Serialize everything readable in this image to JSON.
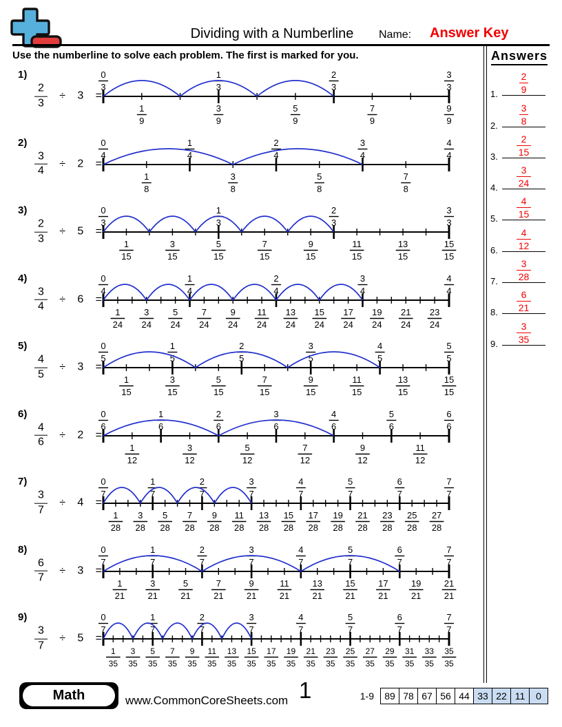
{
  "header": {
    "title": "Dividing with a Numberline",
    "name_label": "Name:",
    "name_value": "Answer Key",
    "instructions": "Use the numberline to solve each problem. The first is marked for you."
  },
  "answers_panel": {
    "title": "Answers",
    "items": [
      {
        "index": "1.",
        "numerator": "2",
        "denominator": "9"
      },
      {
        "index": "2.",
        "numerator": "3",
        "denominator": "8"
      },
      {
        "index": "3.",
        "numerator": "2",
        "denominator": "15"
      },
      {
        "index": "4.",
        "numerator": "3",
        "denominator": "24"
      },
      {
        "index": "5.",
        "numerator": "4",
        "denominator": "15"
      },
      {
        "index": "6.",
        "numerator": "4",
        "denominator": "12"
      },
      {
        "index": "7.",
        "numerator": "3",
        "denominator": "28"
      },
      {
        "index": "8.",
        "numerator": "6",
        "denominator": "21"
      },
      {
        "index": "9.",
        "numerator": "3",
        "denominator": "35"
      }
    ]
  },
  "problems": [
    {
      "number": "1)",
      "expression": {
        "numerator": "2",
        "denominator": "3",
        "op": "÷",
        "divisor": "3",
        "eq": "="
      },
      "numberline": {
        "subdivisions": 9,
        "top_labels": [
          "0/3",
          "1/3",
          "2/3",
          "3/3"
        ],
        "bottom_labels": [
          "1/9",
          "3/9",
          "5/9",
          "7/9",
          "9/9"
        ],
        "arc_count": 3,
        "arc_span": 2
      }
    },
    {
      "number": "2)",
      "expression": {
        "numerator": "3",
        "denominator": "4",
        "op": "÷",
        "divisor": "2",
        "eq": "="
      },
      "numberline": {
        "subdivisions": 8,
        "top_labels": [
          "0/4",
          "1/4",
          "2/4",
          "3/4",
          "4/4"
        ],
        "bottom_labels": [
          "1/8",
          "3/8",
          "5/8",
          "7/8"
        ],
        "arc_count": 2,
        "arc_span": 3
      }
    },
    {
      "number": "3)",
      "expression": {
        "numerator": "2",
        "denominator": "3",
        "op": "÷",
        "divisor": "5",
        "eq": "="
      },
      "numberline": {
        "subdivisions": 15,
        "top_labels": [
          "0/3",
          "1/3",
          "2/3",
          "3/3"
        ],
        "bottom_labels": [
          "1/15",
          "3/15",
          "5/15",
          "7/15",
          "9/15",
          "11/15",
          "13/15",
          "15/15"
        ],
        "arc_count": 5,
        "arc_span": 2
      }
    },
    {
      "number": "4)",
      "expression": {
        "numerator": "3",
        "denominator": "4",
        "op": "÷",
        "divisor": "6",
        "eq": "="
      },
      "numberline": {
        "subdivisions": 24,
        "top_labels": [
          "0/4",
          "1/4",
          "2/4",
          "3/4",
          "4/4"
        ],
        "bottom_labels": [
          "1/24",
          "3/24",
          "5/24",
          "7/24",
          "9/24",
          "11/24",
          "13/24",
          "15/24",
          "17/24",
          "19/24",
          "21/24",
          "23/24"
        ],
        "arc_count": 6,
        "arc_span": 3
      }
    },
    {
      "number": "5)",
      "expression": {
        "numerator": "4",
        "denominator": "5",
        "op": "÷",
        "divisor": "3",
        "eq": "="
      },
      "numberline": {
        "subdivisions": 15,
        "top_labels": [
          "0/5",
          "1/5",
          "2/5",
          "3/5",
          "4/5",
          "5/5"
        ],
        "bottom_labels": [
          "1/15",
          "3/15",
          "5/15",
          "7/15",
          "9/15",
          "11/15",
          "13/15",
          "15/15"
        ],
        "arc_count": 3,
        "arc_span": 4
      }
    },
    {
      "number": "6)",
      "expression": {
        "numerator": "4",
        "denominator": "6",
        "op": "÷",
        "divisor": "2",
        "eq": "="
      },
      "numberline": {
        "subdivisions": 12,
        "top_labels": [
          "0/6",
          "1/6",
          "2/6",
          "3/6",
          "4/6",
          "5/6",
          "6/6"
        ],
        "bottom_labels": [
          "1/12",
          "3/12",
          "5/12",
          "7/12",
          "9/12",
          "11/12"
        ],
        "arc_count": 2,
        "arc_span": 4
      }
    },
    {
      "number": "7)",
      "expression": {
        "numerator": "3",
        "denominator": "7",
        "op": "÷",
        "divisor": "4",
        "eq": "="
      },
      "numberline": {
        "subdivisions": 28,
        "top_labels": [
          "0/7",
          "1/7",
          "2/7",
          "3/7",
          "4/7",
          "5/7",
          "6/7",
          "7/7"
        ],
        "bottom_labels": [
          "1/28",
          "3/28",
          "5/28",
          "7/28",
          "9/28",
          "11/28",
          "13/28",
          "15/28",
          "17/28",
          "19/28",
          "21/28",
          "23/28",
          "25/28",
          "27/28"
        ],
        "arc_count": 4,
        "arc_span": 3
      }
    },
    {
      "number": "8)",
      "expression": {
        "numerator": "6",
        "denominator": "7",
        "op": "÷",
        "divisor": "3",
        "eq": "="
      },
      "numberline": {
        "subdivisions": 21,
        "top_labels": [
          "0/7",
          "1/7",
          "2/7",
          "3/7",
          "4/7",
          "5/7",
          "6/7",
          "7/7"
        ],
        "bottom_labels": [
          "1/21",
          "3/21",
          "5/21",
          "7/21",
          "9/21",
          "11/21",
          "13/21",
          "15/21",
          "17/21",
          "19/21",
          "21/21"
        ],
        "arc_count": 3,
        "arc_span": 6
      }
    },
    {
      "number": "9)",
      "expression": {
        "numerator": "3",
        "denominator": "7",
        "op": "÷",
        "divisor": "5",
        "eq": "="
      },
      "numberline": {
        "subdivisions": 35,
        "top_labels": [
          "0/7",
          "1/7",
          "2/7",
          "3/7",
          "4/7",
          "5/7",
          "6/7",
          "7/7"
        ],
        "bottom_labels": [
          "1/35",
          "3/35",
          "5/35",
          "7/35",
          "9/35",
          "11/35",
          "13/35",
          "15/35",
          "17/35",
          "19/35",
          "21/35",
          "23/35",
          "25/35",
          "27/35",
          "29/35",
          "31/35",
          "33/35",
          "35/35"
        ],
        "arc_count": 5,
        "arc_span": 3
      }
    }
  ],
  "footer": {
    "brand": "Math",
    "url": "www.CommonCoreSheets.com",
    "page": "1",
    "score_range": "1-9",
    "scores": [
      "89",
      "78",
      "67",
      "56",
      "44",
      "33",
      "22",
      "11",
      "0"
    ],
    "highlight_from_index": 5
  },
  "colors": {
    "arc_blue": "#2230cc",
    "answer_red": "#f20000",
    "score_highlight": "#c9dcf2"
  }
}
